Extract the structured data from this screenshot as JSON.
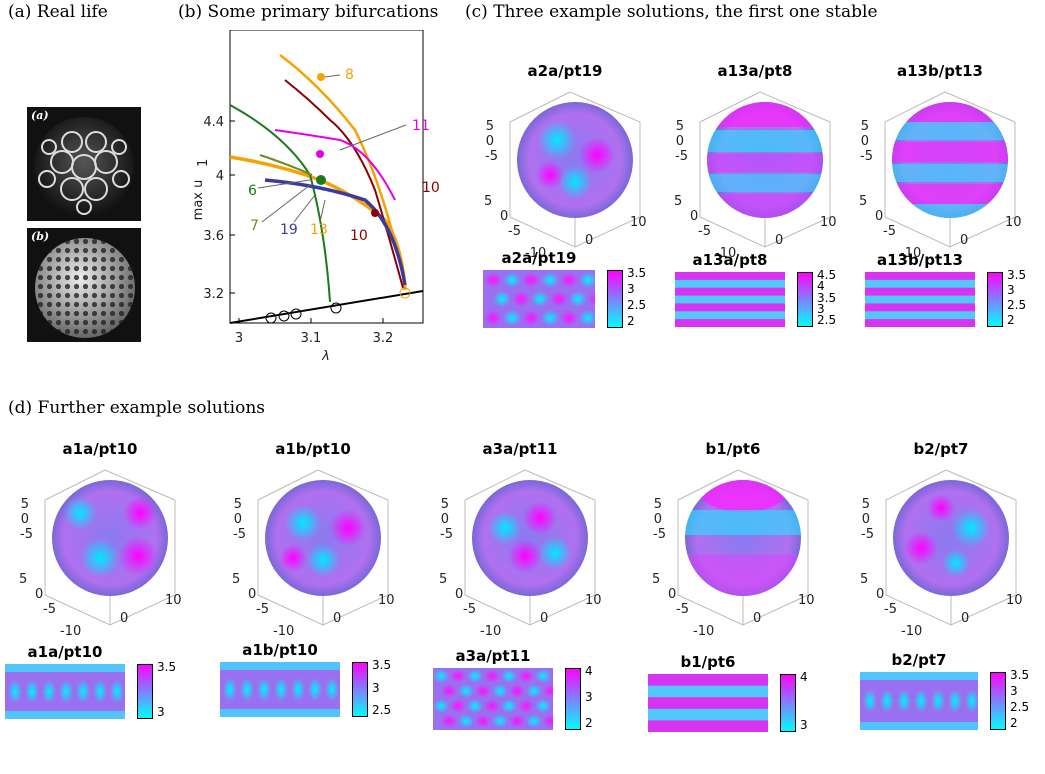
{
  "headings": {
    "a": "(a) Real life",
    "b": "(b) Some primary bifurcations",
    "c": "(c) Three example solutions, the first one stable",
    "d": "(d) Further example solutions"
  },
  "photo_tags": [
    "(a)",
    "(b)"
  ],
  "bifurcation": {
    "ylabel": "max u",
    "ylabel_sub": "1",
    "xlabel": "λ",
    "xticks": [
      "3",
      "3.1",
      "3.2"
    ],
    "yticks": [
      "3.2",
      "3.6",
      "4",
      "4.4"
    ],
    "branch_labels": [
      "8",
      "11",
      "10",
      "10",
      "6",
      "7",
      "19",
      "13"
    ],
    "colors": {
      "orange": "#f5a300",
      "magenta": "#e600e6",
      "darkred": "#8b0000",
      "green": "#1a7a1a",
      "olive": "#6b8e23",
      "navy": "#3a3aa0",
      "black": "#000000"
    }
  },
  "axis_ticks": {
    "z": [
      "5",
      "0",
      "-5"
    ],
    "y": [
      "5",
      "0",
      "-5"
    ],
    "x": [
      "-10",
      "0",
      "10"
    ]
  },
  "section_c": {
    "spheres": [
      {
        "title": "a2a/pt19"
      },
      {
        "title": "a13a/pt8"
      },
      {
        "title": "a13b/pt13"
      }
    ],
    "flats": [
      {
        "title": "a2a/pt19",
        "cbar": [
          "3.5",
          "3",
          "2.5",
          "2"
        ]
      },
      {
        "title": "a13a/pt8",
        "cbar": [
          "4.5",
          "4",
          "3.5",
          "3",
          "2.5"
        ]
      },
      {
        "title": "a13b/pt13",
        "cbar": [
          "3.5",
          "3",
          "2.5",
          "2"
        ]
      }
    ]
  },
  "section_d": {
    "spheres": [
      {
        "title": "a1a/pt10"
      },
      {
        "title": "a1b/pt10"
      },
      {
        "title": "a3a/pt11"
      },
      {
        "title": "b1/pt6"
      },
      {
        "title": "b2/pt7"
      }
    ],
    "flats": [
      {
        "title": "a1a/pt10",
        "cbar": [
          "3.5",
          "3"
        ]
      },
      {
        "title": "a1b/pt10",
        "cbar": [
          "3.5",
          "3",
          "2.5"
        ]
      },
      {
        "title": "a3a/pt11",
        "cbar": [
          "4",
          "3",
          "2"
        ]
      },
      {
        "title": "b1/pt6",
        "cbar": [
          "4",
          "3"
        ]
      },
      {
        "title": "b2/pt7",
        "cbar": [
          "3.5",
          "3",
          "2.5",
          "2"
        ]
      }
    ]
  }
}
